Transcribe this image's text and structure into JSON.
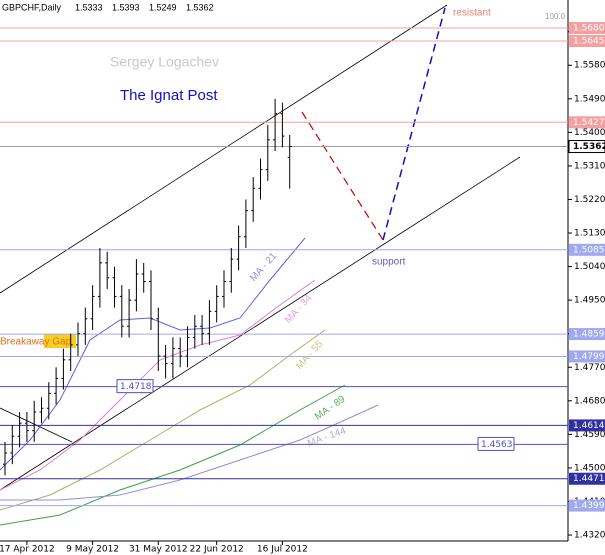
{
  "chart_data": {
    "type": "ohlc",
    "symbol": "GBPCHF,Daily",
    "categories": [
      null,
      null,
      null,
      "17 Apr 2012",
      null,
      null,
      null,
      null,
      null,
      null,
      null,
      null,
      "9 May 2012",
      null,
      null,
      null,
      null,
      null,
      null,
      null,
      null,
      "31 May 2012",
      null,
      null,
      null,
      null,
      null,
      null,
      null,
      "22 Jun 2012",
      null,
      null,
      null,
      null,
      null,
      null,
      null,
      null,
      "16 Jul 2012",
      null
    ],
    "series": [
      {
        "name": "open",
        "values": [
          1.451,
          1.454,
          1.4585,
          1.462,
          1.46,
          1.465,
          1.466,
          1.47,
          1.474,
          1.479,
          1.483,
          1.486,
          1.49,
          1.496,
          1.505,
          1.501,
          1.496,
          1.488,
          1.495,
          1.502,
          1.5,
          1.49,
          1.48,
          1.478,
          1.482,
          1.48,
          1.485,
          1.488,
          1.486,
          1.492,
          1.496,
          1.5,
          1.506,
          1.512,
          1.519,
          1.525,
          1.53,
          1.538,
          1.545,
          1.5333
        ]
      },
      {
        "name": "high",
        "values": [
          1.457,
          1.4615,
          1.465,
          1.465,
          1.468,
          1.469,
          1.473,
          1.477,
          1.482,
          1.486,
          1.489,
          1.493,
          1.499,
          1.509,
          1.508,
          1.504,
          1.499,
          1.498,
          1.506,
          1.505,
          1.503,
          1.493,
          1.483,
          1.485,
          1.485,
          1.488,
          1.491,
          1.491,
          1.495,
          1.499,
          1.503,
          1.509,
          1.515,
          1.522,
          1.528,
          1.533,
          1.542,
          1.549,
          1.548,
          1.5393
        ]
      },
      {
        "name": "low",
        "values": [
          1.448,
          1.451,
          1.4555,
          1.457,
          1.457,
          1.462,
          1.463,
          1.467,
          1.471,
          1.476,
          1.48,
          1.483,
          1.487,
          1.493,
          1.498,
          1.493,
          1.485,
          1.485,
          1.492,
          1.497,
          1.487,
          1.476,
          1.474,
          1.474,
          1.477,
          1.477,
          1.482,
          1.483,
          1.483,
          1.489,
          1.493,
          1.497,
          1.503,
          1.509,
          1.516,
          1.522,
          1.527,
          1.535,
          1.536,
          1.5249
        ]
      },
      {
        "name": "close",
        "values": [
          1.454,
          1.4585,
          1.462,
          1.46,
          1.465,
          1.466,
          1.47,
          1.474,
          1.479,
          1.483,
          1.486,
          1.49,
          1.496,
          1.505,
          1.501,
          1.496,
          1.488,
          1.495,
          1.502,
          1.5,
          1.49,
          1.48,
          1.478,
          1.482,
          1.48,
          1.485,
          1.488,
          1.486,
          1.492,
          1.496,
          1.5,
          1.506,
          1.512,
          1.519,
          1.525,
          1.53,
          1.538,
          1.545,
          1.539,
          1.5362
        ]
      }
    ],
    "color": "#000000",
    "ylim": [
      1.4304,
      1.5755
    ],
    "yticks": [
      {
        "value": 1.567,
        "label": "1.5670"
      },
      {
        "value": 1.558,
        "label": "1.5580"
      },
      {
        "value": 1.549,
        "label": "1.5490"
      },
      {
        "value": 1.54,
        "label": "1.5400"
      },
      {
        "value": 1.531,
        "label": "1.5310"
      },
      {
        "value": 1.522,
        "label": "1.5220"
      },
      {
        "value": 1.513,
        "label": "1.5130"
      },
      {
        "value": 1.504,
        "label": "1.5040"
      },
      {
        "value": 1.495,
        "label": "1.4950"
      },
      {
        "value": 1.486,
        "label": "1.4860"
      },
      {
        "value": 1.477,
        "label": "1.4770"
      },
      {
        "value": 1.468,
        "label": "1.4680"
      },
      {
        "value": 1.459,
        "label": "1.4590"
      },
      {
        "value": 1.45,
        "label": "1.4500"
      },
      {
        "value": 1.441,
        "label": "1.4410"
      },
      {
        "value": 1.432,
        "label": "1.4320"
      }
    ],
    "levels": [
      {
        "value": 1.568,
        "label": "1.5680",
        "color": "#f4a0a0"
      },
      {
        "value": 1.5645,
        "label": "1.5645",
        "color": "#f4a0a0"
      },
      {
        "value": 1.5427,
        "label": "1.5427",
        "color": "#f4a0a0"
      },
      {
        "value": 1.5362,
        "label": "1.5362",
        "color": "#a0a0a0"
      },
      {
        "value": 1.5085,
        "label": "1.5085",
        "color": "#a0a8f0"
      },
      {
        "value": 1.4859,
        "label": "1.4859",
        "color": "#a0a8f0"
      },
      {
        "value": 1.4799,
        "label": "1.4799",
        "color": "#a0a8f0"
      },
      {
        "value": 1.4718,
        "label": "1.4718",
        "color": "#5050c0"
      },
      {
        "value": 1.4614,
        "label": "1.4614",
        "color": "#3030a0"
      },
      {
        "value": 1.4563,
        "label": "1.4563",
        "color": "#5050c0"
      },
      {
        "value": 1.4471,
        "label": "1.4471",
        "color": "#3030a0"
      },
      {
        "value": 1.4399,
        "label": "1.4399",
        "color": "#a0a8f0"
      }
    ],
    "fib_label": "100.0",
    "annotations": {
      "author": "Sergey Logachev",
      "site": "The Ignat Post",
      "resistant": "resistant",
      "support": "support",
      "gap": "Breakaway Gap",
      "ma21": "MA - 21",
      "ma34": "MA - 34",
      "ma55": "MA - 55",
      "ma89": "MA - 89",
      "ma144": "MA - 144"
    }
  }
}
